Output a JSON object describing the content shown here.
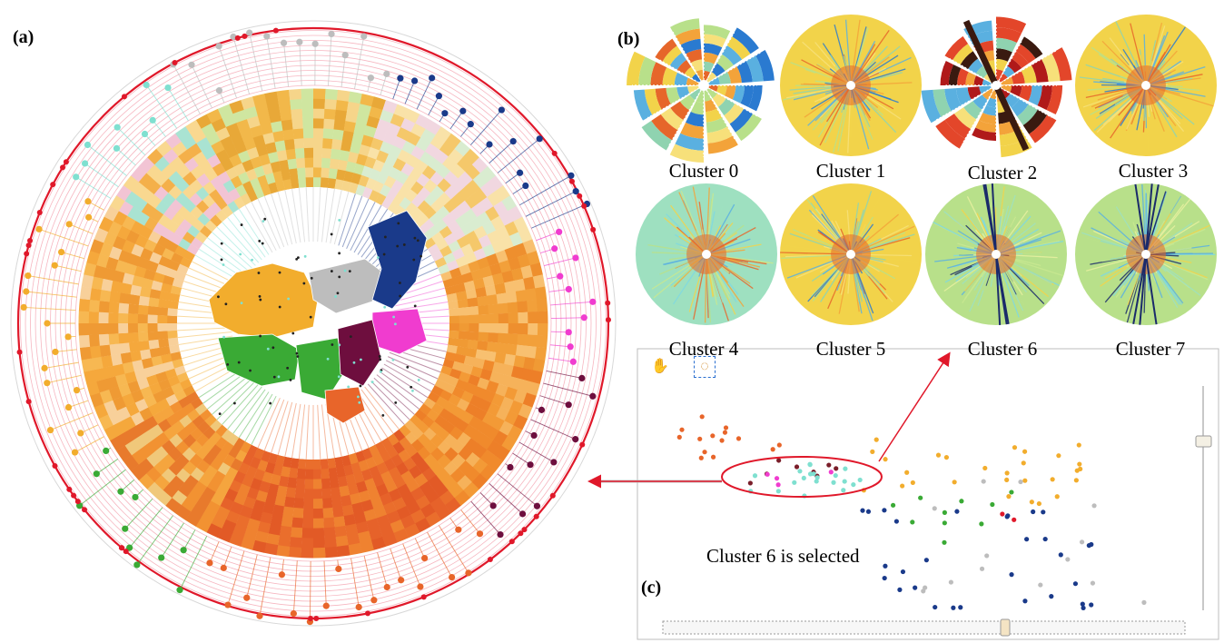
{
  "panels": {
    "a": "(a)",
    "b": "(b)",
    "c": "(c)"
  },
  "clusters": [
    {
      "label": "Cluster 0",
      "style": "pinwheel"
    },
    {
      "label": "Cluster 1",
      "style": "radial"
    },
    {
      "label": "Cluster 2",
      "style": "pinwheel-dark"
    },
    {
      "label": "Cluster 3",
      "style": "radial"
    },
    {
      "label": "Cluster 4",
      "style": "radial-cyan"
    },
    {
      "label": "Cluster 5",
      "style": "radial"
    },
    {
      "label": "Cluster 6",
      "style": "radial-green"
    },
    {
      "label": "Cluster 7",
      "style": "radial-green"
    }
  ],
  "annotation": "Cluster 6 is selected",
  "tools": {
    "pan": "hand-icon",
    "select": "lasso-select-icon"
  },
  "colors": {
    "ring_red": "#e0182a",
    "cluster_gray": "#bdbdbd",
    "cluster_navy": "#1a3a8a",
    "cluster_magenta": "#f03ccf",
    "cluster_maroon": "#6e0e3e",
    "cluster_red": "#e0182a",
    "cluster_orange": "#e8652a",
    "cluster_green": "#3aaa35",
    "cluster_yellow": "#f2ad2d",
    "cluster_cyan": "#7fe0d0"
  }
}
